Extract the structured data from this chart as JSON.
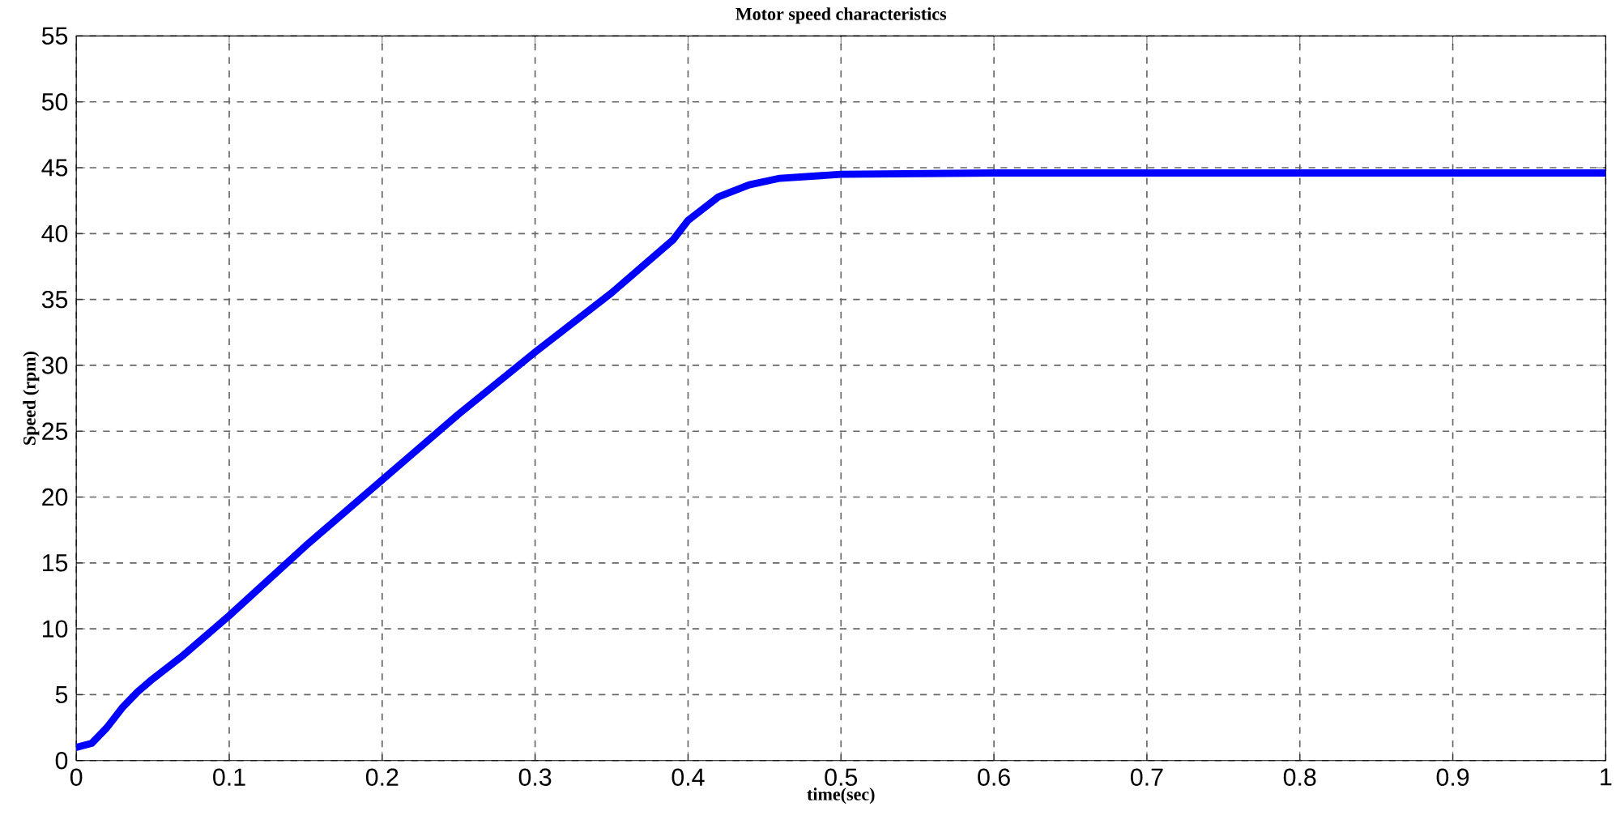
{
  "chart_data": {
    "type": "line",
    "title": "Motor speed characteristics",
    "xlabel": "time(sec)",
    "ylabel": "Speed (rpm)",
    "x": [
      0,
      0.01,
      0.02,
      0.03,
      0.04,
      0.05,
      0.07,
      0.1,
      0.15,
      0.2,
      0.25,
      0.3,
      0.35,
      0.38,
      0.39,
      0.4,
      0.42,
      0.44,
      0.46,
      0.5,
      0.6,
      1
    ],
    "series": [
      {
        "color": "#0000ff",
        "values": [
          1,
          1.3,
          2.5,
          4,
          5.2,
          6.2,
          8,
          11,
          16.3,
          21.3,
          26.3,
          31,
          35.5,
          38.5,
          39.5,
          41,
          42.8,
          43.7,
          44.2,
          44.5,
          44.6,
          44.6
        ]
      }
    ],
    "xlim": [
      0,
      1
    ],
    "ylim": [
      0,
      55
    ],
    "xticks": [
      0,
      0.1,
      0.2,
      0.3,
      0.4,
      0.5,
      0.6,
      0.7,
      0.8,
      0.9,
      1
    ],
    "yticks": [
      0,
      5,
      10,
      15,
      20,
      25,
      30,
      35,
      40,
      45,
      50,
      55
    ],
    "grid": true,
    "marker": "none",
    "line_style": "solid"
  }
}
